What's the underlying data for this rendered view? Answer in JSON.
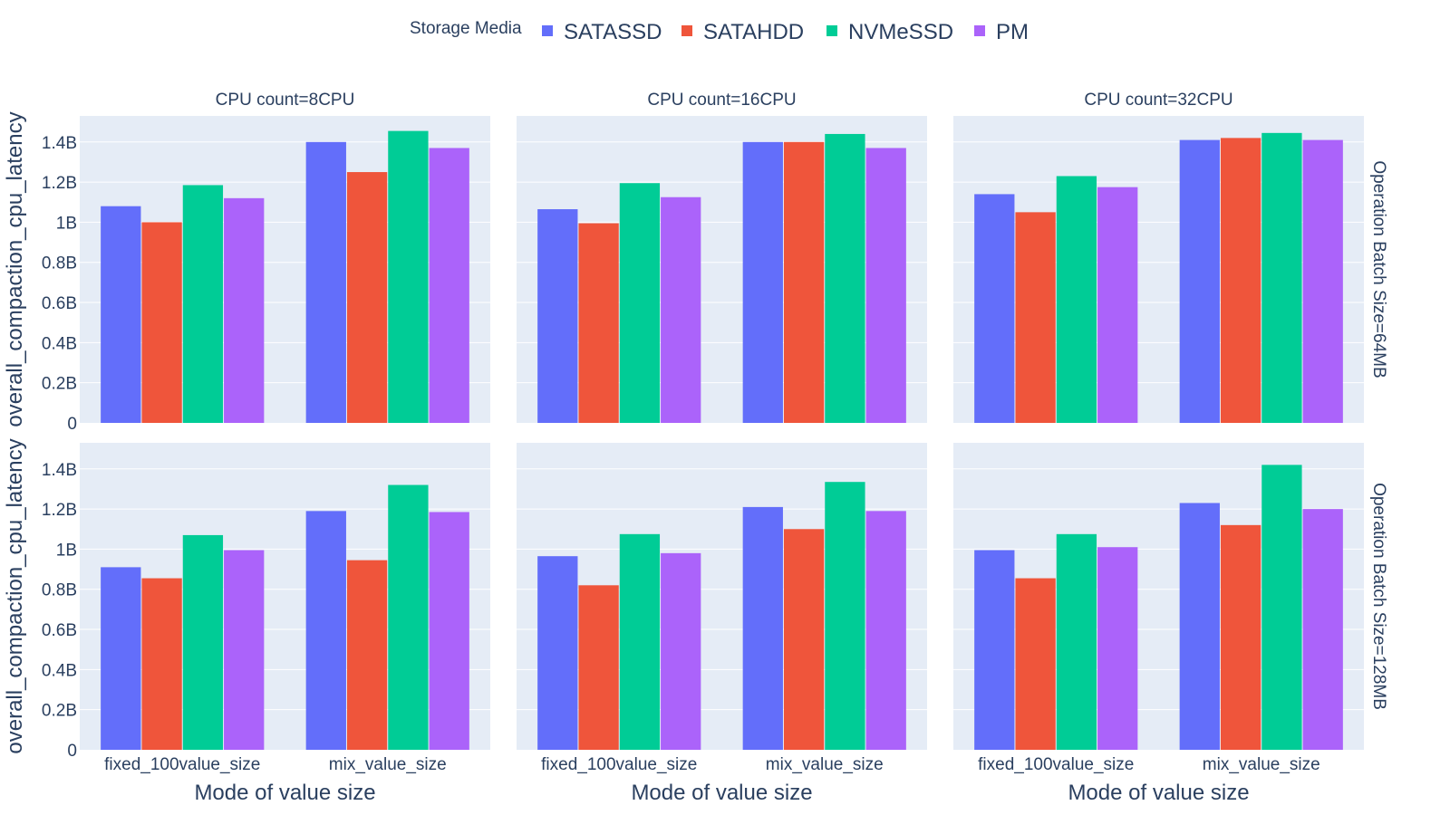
{
  "legend": {
    "title": "Storage Media",
    "items": [
      {
        "label": "SATASSD",
        "color": "#636efa"
      },
      {
        "label": "SATAHDD",
        "color": "#EF553B"
      },
      {
        "label": "NVMeSSD",
        "color": "#00cc96"
      },
      {
        "label": "PM",
        "color": "#ab63fa"
      }
    ]
  },
  "chart_data": {
    "type": "bar",
    "layout": "facet-grid",
    "categories": [
      "fixed_100value_size",
      "mix_value_size"
    ],
    "xlabel": "Mode of value size",
    "ylabel": "overall_compaction_cpu_latency",
    "ylim": [
      0,
      1530000000
    ],
    "yticks": [
      {
        "value": 0,
        "label": "0"
      },
      {
        "value": 200000000,
        "label": "0.2B"
      },
      {
        "value": 400000000,
        "label": "0.4B"
      },
      {
        "value": 600000000,
        "label": "0.6B"
      },
      {
        "value": 800000000,
        "label": "0.8B"
      },
      {
        "value": 1000000000,
        "label": "1B"
      },
      {
        "value": 1200000000,
        "label": "1.2B"
      },
      {
        "value": 1400000000,
        "label": "1.4B"
      }
    ],
    "grid": true,
    "legend_position": "top",
    "column_titles": [
      "CPU count=8CPU",
      "CPU count=16CPU",
      "CPU count=32CPU"
    ],
    "row_titles": [
      "Operation Batch Size=64MB",
      "Operation Batch Size=128MB"
    ],
    "panels": [
      {
        "row": 0,
        "col": 0,
        "series": [
          {
            "name": "SATASSD",
            "values": [
              1080000000,
              1400000000
            ]
          },
          {
            "name": "SATAHDD",
            "values": [
              1000000000,
              1250000000
            ]
          },
          {
            "name": "NVMeSSD",
            "values": [
              1185000000,
              1455000000
            ]
          },
          {
            "name": "PM",
            "values": [
              1120000000,
              1370000000
            ]
          }
        ]
      },
      {
        "row": 0,
        "col": 1,
        "series": [
          {
            "name": "SATASSD",
            "values": [
              1065000000,
              1400000000
            ]
          },
          {
            "name": "SATAHDD",
            "values": [
              995000000,
              1400000000
            ]
          },
          {
            "name": "NVMeSSD",
            "values": [
              1195000000,
              1440000000
            ]
          },
          {
            "name": "PM",
            "values": [
              1125000000,
              1370000000
            ]
          }
        ]
      },
      {
        "row": 0,
        "col": 2,
        "series": [
          {
            "name": "SATASSD",
            "values": [
              1140000000,
              1410000000
            ]
          },
          {
            "name": "SATAHDD",
            "values": [
              1050000000,
              1420000000
            ]
          },
          {
            "name": "NVMeSSD",
            "values": [
              1230000000,
              1445000000
            ]
          },
          {
            "name": "PM",
            "values": [
              1175000000,
              1410000000
            ]
          }
        ]
      },
      {
        "row": 1,
        "col": 0,
        "series": [
          {
            "name": "SATASSD",
            "values": [
              910000000,
              1190000000
            ]
          },
          {
            "name": "SATAHDD",
            "values": [
              855000000,
              945000000
            ]
          },
          {
            "name": "NVMeSSD",
            "values": [
              1070000000,
              1320000000
            ]
          },
          {
            "name": "PM",
            "values": [
              995000000,
              1185000000
            ]
          }
        ]
      },
      {
        "row": 1,
        "col": 1,
        "series": [
          {
            "name": "SATASSD",
            "values": [
              965000000,
              1210000000
            ]
          },
          {
            "name": "SATAHDD",
            "values": [
              820000000,
              1100000000
            ]
          },
          {
            "name": "NVMeSSD",
            "values": [
              1075000000,
              1335000000
            ]
          },
          {
            "name": "PM",
            "values": [
              980000000,
              1190000000
            ]
          }
        ]
      },
      {
        "row": 1,
        "col": 2,
        "series": [
          {
            "name": "SATASSD",
            "values": [
              995000000,
              1230000000
            ]
          },
          {
            "name": "SATAHDD",
            "values": [
              855000000,
              1120000000
            ]
          },
          {
            "name": "NVMeSSD",
            "values": [
              1075000000,
              1420000000
            ]
          },
          {
            "name": "PM",
            "values": [
              1010000000,
              1200000000
            ]
          }
        ]
      }
    ]
  }
}
